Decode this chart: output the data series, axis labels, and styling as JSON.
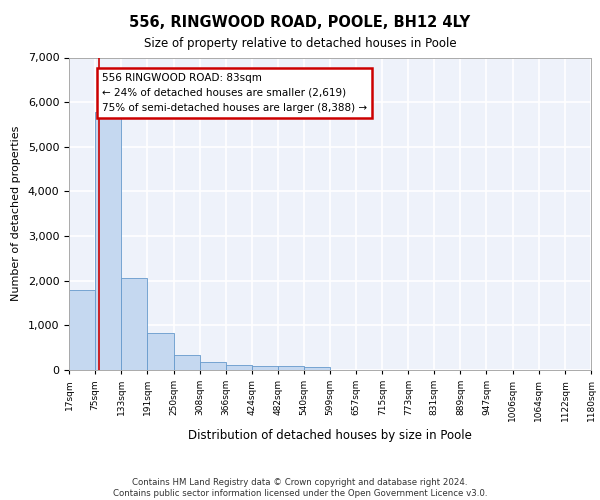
{
  "title": "556, RINGWOOD ROAD, POOLE, BH12 4LY",
  "subtitle": "Size of property relative to detached houses in Poole",
  "xlabel": "Distribution of detached houses by size in Poole",
  "ylabel": "Number of detached properties",
  "bar_color": "#c5d8f0",
  "bar_edge_color": "#6699cc",
  "background_color": "#eef2fa",
  "grid_color": "#ffffff",
  "vline_x": 83,
  "vline_color": "#cc0000",
  "annotation_text": "556 RINGWOOD ROAD: 83sqm\n← 24% of detached houses are smaller (2,619)\n75% of semi-detached houses are larger (8,388) →",
  "annotation_box_color": "#ffffff",
  "annotation_box_edge_color": "#cc0000",
  "footer_text": "Contains HM Land Registry data © Crown copyright and database right 2024.\nContains public sector information licensed under the Open Government Licence v3.0.",
  "bin_edges": [
    17,
    75,
    133,
    191,
    250,
    308,
    366,
    424,
    482,
    540,
    599,
    657,
    715,
    773,
    831,
    889,
    947,
    1006,
    1064,
    1122,
    1180
  ],
  "bin_labels": [
    "17sqm",
    "75sqm",
    "133sqm",
    "191sqm",
    "250sqm",
    "308sqm",
    "366sqm",
    "424sqm",
    "482sqm",
    "540sqm",
    "599sqm",
    "657sqm",
    "715sqm",
    "773sqm",
    "831sqm",
    "889sqm",
    "947sqm",
    "1006sqm",
    "1064sqm",
    "1122sqm",
    "1180sqm"
  ],
  "bar_heights": [
    1790,
    5780,
    2060,
    830,
    340,
    185,
    115,
    95,
    80,
    65,
    0,
    0,
    0,
    0,
    0,
    0,
    0,
    0,
    0,
    0
  ],
  "ylim": [
    0,
    7000
  ],
  "yticks": [
    0,
    1000,
    2000,
    3000,
    4000,
    5000,
    6000,
    7000
  ]
}
